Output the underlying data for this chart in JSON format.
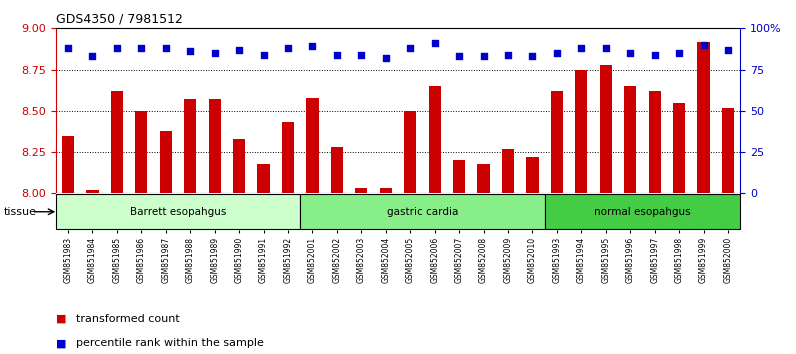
{
  "title": "GDS4350 / 7981512",
  "samples": [
    "GSM851983",
    "GSM851984",
    "GSM851985",
    "GSM851986",
    "GSM851987",
    "GSM851988",
    "GSM851989",
    "GSM851990",
    "GSM851991",
    "GSM851992",
    "GSM852001",
    "GSM852002",
    "GSM852003",
    "GSM852004",
    "GSM852005",
    "GSM852006",
    "GSM852007",
    "GSM852008",
    "GSM852009",
    "GSM852010",
    "GSM851993",
    "GSM851994",
    "GSM851995",
    "GSM851996",
    "GSM851997",
    "GSM851998",
    "GSM851999",
    "GSM852000"
  ],
  "bar_values": [
    8.35,
    8.02,
    8.62,
    8.5,
    8.38,
    8.57,
    8.57,
    8.33,
    8.18,
    8.43,
    8.58,
    8.28,
    8.03,
    8.03,
    8.5,
    8.65,
    8.2,
    8.18,
    8.27,
    8.22,
    8.62,
    8.75,
    8.78,
    8.65,
    8.62,
    8.55,
    8.92,
    8.52
  ],
  "percentile_values": [
    88,
    83,
    88,
    88,
    88,
    86,
    85,
    87,
    84,
    88,
    89,
    84,
    84,
    82,
    88,
    91,
    83,
    83,
    84,
    83,
    85,
    88,
    88,
    85,
    84,
    85,
    90,
    87
  ],
  "tissue_groups": [
    {
      "label": "Barrett esopahgus",
      "start": 0,
      "end": 10,
      "color": "#ccffcc"
    },
    {
      "label": "gastric cardia",
      "start": 10,
      "end": 20,
      "color": "#88ee88"
    },
    {
      "label": "normal esopahgus",
      "start": 20,
      "end": 28,
      "color": "#44cc44"
    }
  ],
  "bar_color": "#cc0000",
  "dot_color": "#0000cc",
  "ylim_left": [
    8.0,
    9.0
  ],
  "ylim_right": [
    0,
    100
  ],
  "yticks_left": [
    8.0,
    8.25,
    8.5,
    8.75,
    9.0
  ],
  "yticks_right": [
    0,
    25,
    50,
    75,
    100
  ],
  "ytick_labels_right": [
    "0",
    "25",
    "50",
    "75",
    "100%"
  ],
  "grid_values": [
    8.25,
    8.5,
    8.75
  ],
  "legend_bar_label": "transformed count",
  "legend_dot_label": "percentile rank within the sample",
  "tissue_label": "tissue",
  "background_color": "#ffffff",
  "plot_bg_color": "#ffffff"
}
